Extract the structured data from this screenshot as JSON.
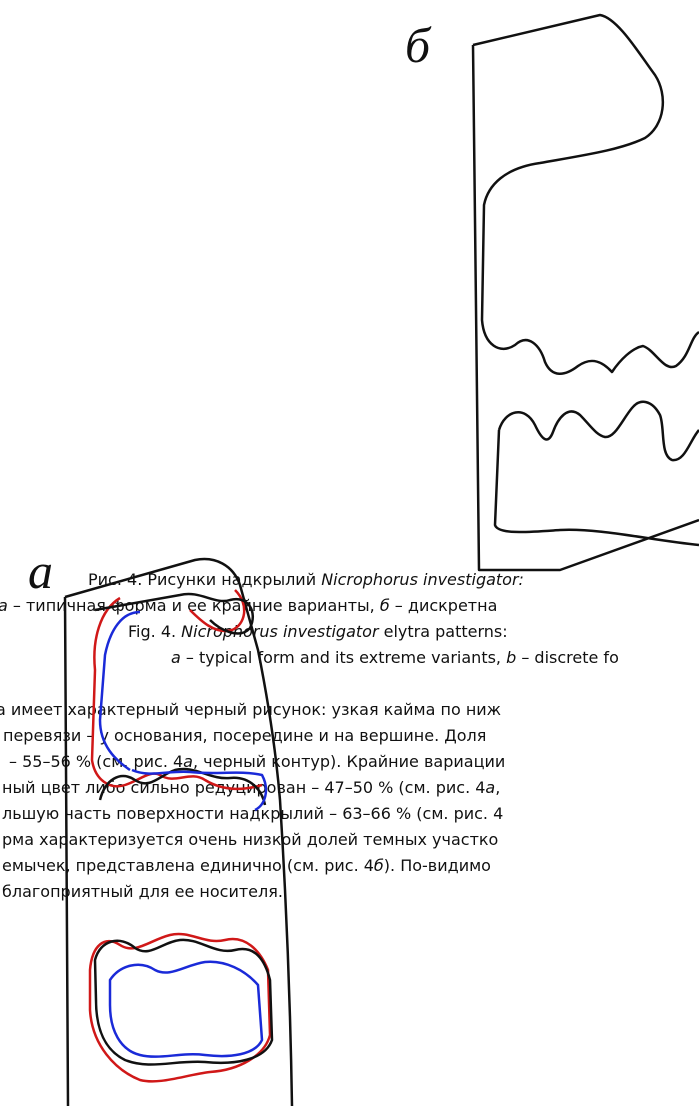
{
  "figure": {
    "label_b": "б",
    "label_a": "а"
  },
  "caption": {
    "lines": [
      [
        {
          "text": "Рис. 4. Рисунки надкрылий "
        },
        {
          "text": "Nicrophorus investigator:",
          "italic": true
        }
      ],
      [
        {
          "text": "а",
          "italic": true
        },
        {
          "text": " – типичная форма и ее крайние варианты, "
        },
        {
          "text": "б",
          "italic": true
        },
        {
          "text": " – дискретна"
        }
      ],
      [
        {
          "text": "Fig. 4. "
        },
        {
          "text": "Nicrophorus investigator",
          "italic": true
        },
        {
          "text": " elytra patterns:"
        }
      ],
      [
        {
          "text": "a",
          "italic": true
        },
        {
          "text": " – typical form and its extreme variants, "
        },
        {
          "text": "b",
          "italic": true
        },
        {
          "text": " – discrete fo"
        }
      ]
    ]
  },
  "body": {
    "lines": [
      [
        {
          "text": "а имеет характерный черный рисунок: узкая кайма по ниж"
        }
      ],
      [
        {
          "text": "перевязи – у основания, посередине и на вершине. Доля"
        }
      ],
      [
        {
          "text": "– 55–56 % (см. рис. 4"
        },
        {
          "text": "а",
          "italic": true
        },
        {
          "text": ", черный контур). Крайние вариации"
        }
      ],
      [
        {
          "text": "ный цвет либо сильно редуцирован – 47–50 % (см. рис. 4"
        },
        {
          "text": "а",
          "italic": true
        },
        {
          "text": ","
        }
      ],
      [
        {
          "text": "льшую часть поверхности надкрылий – 63–66 % (см. рис. 4"
        }
      ],
      [
        {
          "text": "рма характеризуется очень низкой долей темных участко"
        }
      ],
      [
        {
          "text": "емычек, представлена единично (см. рис. 4"
        },
        {
          "text": "б",
          "italic": true
        },
        {
          "text": "). По-видимо"
        }
      ],
      [
        {
          "text": "благоприятный для ее носителя."
        }
      ]
    ]
  }
}
